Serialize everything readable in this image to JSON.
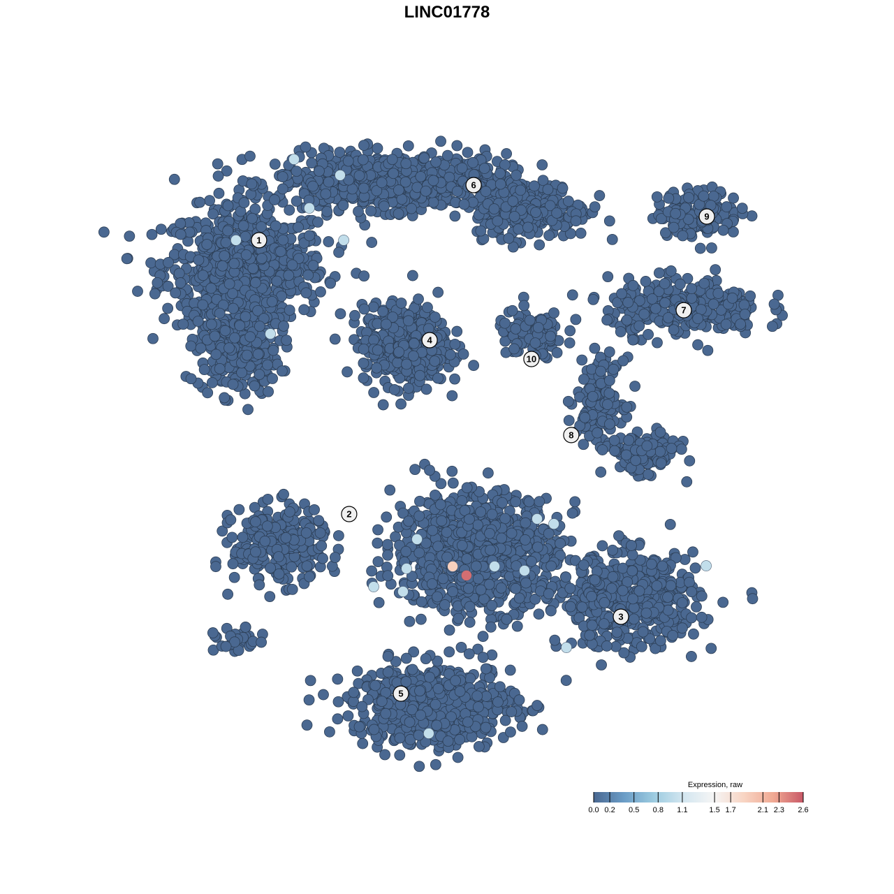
{
  "chart_data": {
    "type": "scatter",
    "title": "LINC01778",
    "xlabel": "",
    "ylabel": "",
    "grid": false,
    "point_base_value": 0.0,
    "background_clusters": [
      {
        "cluster": "1",
        "center": [
          -9.67,
          8.67
        ],
        "spread": [
          3.5,
          2.5
        ],
        "n": 700
      },
      {
        "cluster": "1",
        "center": [
          -10.0,
          4.67
        ],
        "spread": [
          1.8,
          2.0
        ],
        "n": 250
      },
      {
        "cluster": "6",
        "center": [
          -2.67,
          12.67
        ],
        "spread": [
          5.0,
          1.2
        ],
        "n": 700
      },
      {
        "cluster": "6",
        "center": [
          4.0,
          11.33
        ],
        "spread": [
          2.5,
          1.2
        ],
        "n": 250
      },
      {
        "cluster": "4",
        "center": [
          -2.0,
          4.83
        ],
        "spread": [
          1.8,
          1.7
        ],
        "n": 500
      },
      {
        "cluster": "9",
        "center": [
          12.0,
          11.17
        ],
        "spread": [
          1.8,
          1.0
        ],
        "n": 150
      },
      {
        "cluster": "7",
        "center": [
          11.33,
          6.67
        ],
        "spread": [
          3.3,
          1.2
        ],
        "n": 300
      },
      {
        "cluster": "10",
        "center": [
          4.0,
          5.33
        ],
        "spread": [
          1.5,
          1.0
        ],
        "n": 120
      },
      {
        "cluster": "8",
        "center": [
          7.33,
          2.33
        ],
        "spread": [
          1.0,
          1.7
        ],
        "n": 150
      },
      {
        "cluster": "8",
        "center": [
          9.33,
          -0.33
        ],
        "spread": [
          1.5,
          0.8
        ],
        "n": 150
      },
      {
        "cluster": "2",
        "center": [
          -8.0,
          -4.67
        ],
        "spread": [
          2.0,
          1.6
        ],
        "n": 300
      },
      {
        "cluster": "2",
        "center": [
          -10.0,
          -9.33
        ],
        "spread": [
          1.0,
          0.6
        ],
        "n": 30
      },
      {
        "cluster": "central",
        "center": [
          1.33,
          -5.0
        ],
        "spread": [
          3.5,
          2.5
        ],
        "n": 900
      },
      {
        "cluster": "3",
        "center": [
          8.67,
          -7.33
        ],
        "spread": [
          3.0,
          2.0
        ],
        "n": 500
      },
      {
        "cluster": "5",
        "center": [
          -0.67,
          -12.33
        ],
        "spread": [
          3.5,
          1.8
        ],
        "n": 600
      }
    ],
    "expressing_points": [
      {
        "x": -7.3,
        "y": 13.73,
        "value": 1.0
      },
      {
        "x": -5.1,
        "y": 12.97,
        "value": 1.0
      },
      {
        "x": -6.57,
        "y": 11.4,
        "value": 1.0
      },
      {
        "x": -10.07,
        "y": 9.87,
        "value": 1.0
      },
      {
        "x": -4.93,
        "y": 9.87,
        "value": 1.0
      },
      {
        "x": -8.43,
        "y": 5.4,
        "value": 1.0
      },
      {
        "x": 4.3,
        "y": -3.43,
        "value": 1.0
      },
      {
        "x": 5.1,
        "y": -3.67,
        "value": 1.0
      },
      {
        "x": -1.43,
        "y": -4.4,
        "value": 1.0
      },
      {
        "x": -1.93,
        "y": -5.8,
        "value": 1.0
      },
      {
        "x": 2.27,
        "y": -5.7,
        "value": 1.0
      },
      {
        "x": 3.7,
        "y": -5.9,
        "value": 1.0
      },
      {
        "x": -3.5,
        "y": -6.67,
        "value": 1.0
      },
      {
        "x": -2.1,
        "y": -6.9,
        "value": 1.0
      },
      {
        "x": 12.37,
        "y": -5.67,
        "value": 1.0
      },
      {
        "x": 5.7,
        "y": -9.57,
        "value": 1.0
      },
      {
        "x": -0.87,
        "y": -13.67,
        "value": 1.0
      },
      {
        "x": 0.27,
        "y": -5.7,
        "value": 1.9
      },
      {
        "x": 0.93,
        "y": -6.13,
        "value": 2.5
      }
    ],
    "cluster_labels": [
      {
        "label": "1",
        "x": -8.97,
        "y": 9.87
      },
      {
        "label": "6",
        "x": 1.27,
        "y": 12.5
      },
      {
        "label": "9",
        "x": 12.4,
        "y": 11.0
      },
      {
        "label": "7",
        "x": 11.3,
        "y": 6.53
      },
      {
        "label": "4",
        "x": -0.83,
        "y": 5.1
      },
      {
        "label": "10",
        "x": 4.03,
        "y": 4.2
      },
      {
        "label": "8",
        "x": 5.93,
        "y": 0.57
      },
      {
        "label": "2",
        "x": -4.67,
        "y": -3.2
      },
      {
        "label": "3",
        "x": 8.3,
        "y": -8.1
      },
      {
        "label": "5",
        "x": -2.2,
        "y": -11.77
      }
    ],
    "legend": {
      "title": "Expression, raw",
      "placement": "bottom-right",
      "range": [
        0.0,
        2.6
      ],
      "ticks": [
        "0.0",
        "0.2",
        "0.5",
        "0.8",
        "1.1",
        "1.5",
        "1.7",
        "2.1",
        "2.3",
        "2.6"
      ],
      "colors": [
        "#4a6891",
        "#6a9cc6",
        "#9ccbe0",
        "#d3e6f0",
        "#f5f5f5",
        "#f8d5c4",
        "#f0a993",
        "#c85866"
      ]
    }
  }
}
